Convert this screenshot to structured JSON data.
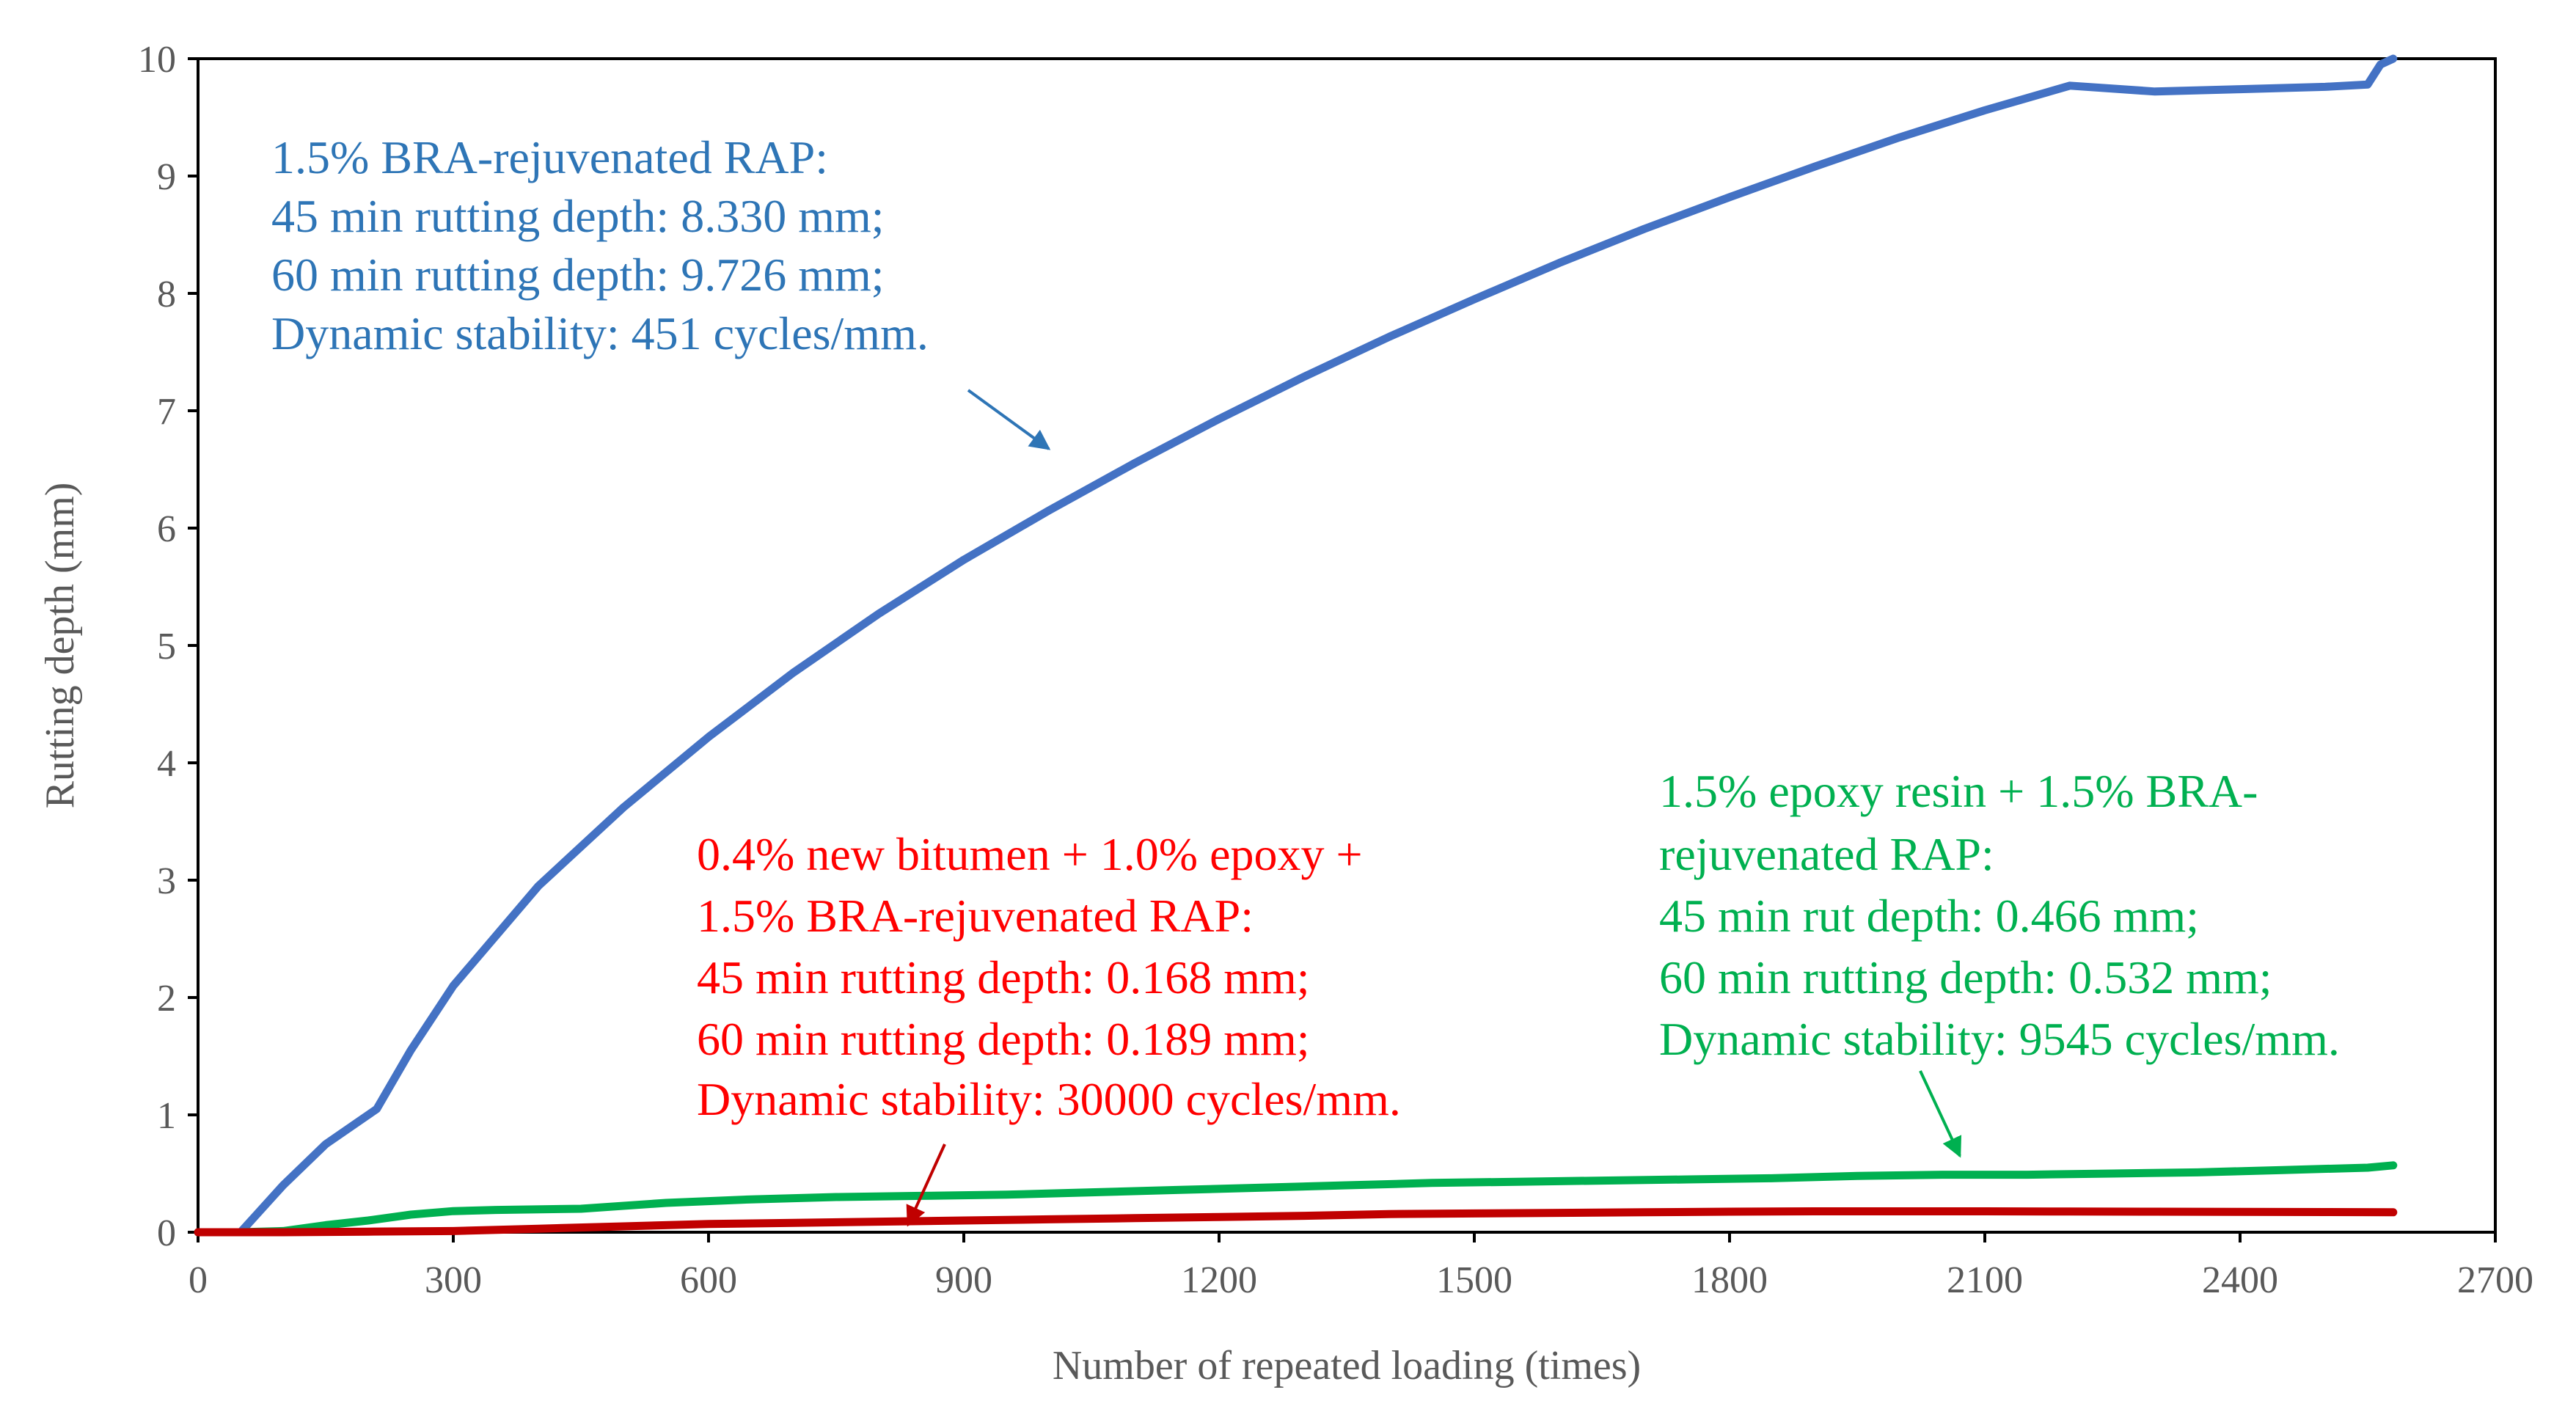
{
  "chart_data": {
    "type": "line",
    "title": "",
    "xlabel": "Number of repeated loading (times)",
    "ylabel": "Rutting depth (mm)",
    "xlim": [
      0,
      2700
    ],
    "ylim": [
      0,
      10
    ],
    "xticks": [
      0,
      300,
      600,
      900,
      1200,
      1500,
      1800,
      2100,
      2400,
      2700
    ],
    "yticks": [
      0,
      1,
      2,
      3,
      4,
      5,
      6,
      7,
      8,
      9,
      10
    ],
    "grid": false,
    "legend": "none",
    "series": [
      {
        "name": "1.5% BRA-rejuvenated RAP",
        "color": "#4472C4",
        "x": [
          0,
          50,
          100,
          150,
          200,
          210,
          250,
          300,
          400,
          500,
          600,
          700,
          800,
          900,
          1000,
          1100,
          1200,
          1300,
          1400,
          1500,
          1600,
          1700,
          1800,
          1900,
          2000,
          2100,
          2200,
          2300,
          2400,
          2500,
          2550,
          2565,
          2580
        ],
        "y": [
          0,
          0,
          0.4,
          0.75,
          1.0,
          1.05,
          1.55,
          2.1,
          2.95,
          3.62,
          4.22,
          4.77,
          5.27,
          5.73,
          6.15,
          6.55,
          6.93,
          7.29,
          7.63,
          7.95,
          8.26,
          8.55,
          8.82,
          9.08,
          9.33,
          9.56,
          9.77,
          9.72,
          9.74,
          9.76,
          9.78,
          9.95,
          10.0
        ]
      },
      {
        "name": "1.5% epoxy resin + 1.5% BRA-rejuvenated RAP",
        "color": "#00B050",
        "x": [
          0,
          50,
          100,
          150,
          200,
          250,
          300,
          350,
          450,
          550,
          650,
          750,
          850,
          950,
          1050,
          1150,
          1250,
          1350,
          1450,
          1550,
          1650,
          1750,
          1850,
          1950,
          2050,
          2150,
          2250,
          2350,
          2450,
          2550,
          2580
        ],
        "y": [
          0,
          0,
          0.01,
          0.06,
          0.1,
          0.15,
          0.18,
          0.19,
          0.2,
          0.25,
          0.28,
          0.3,
          0.31,
          0.32,
          0.34,
          0.36,
          0.38,
          0.4,
          0.42,
          0.43,
          0.44,
          0.45,
          0.46,
          0.48,
          0.49,
          0.49,
          0.5,
          0.51,
          0.53,
          0.55,
          0.57
        ]
      },
      {
        "name": "0.4% new bitumen + 1.0% epoxy + 1.5% BRA-rejuvenated RAP",
        "color": "#C00000",
        "x": [
          0,
          100,
          200,
          300,
          400,
          500,
          600,
          700,
          800,
          900,
          1000,
          1100,
          1200,
          1300,
          1400,
          1500,
          1600,
          1700,
          1800,
          1900,
          2000,
          2100,
          2200,
          2300,
          2400,
          2500,
          2580
        ],
        "y": [
          0,
          0,
          0.005,
          0.01,
          0.03,
          0.05,
          0.07,
          0.08,
          0.09,
          0.1,
          0.11,
          0.12,
          0.13,
          0.14,
          0.155,
          0.16,
          0.165,
          0.17,
          0.175,
          0.178,
          0.178,
          0.178,
          0.176,
          0.175,
          0.174,
          0.172,
          0.17
        ]
      }
    ],
    "annotations": [
      {
        "id": "blue",
        "color": "#2E75B6",
        "lines": [
          "1.5% BRA-rejuvenated RAP:",
          "45 min rutting depth: 8.330 mm;",
          "60 min rutting depth: 9.726 mm;",
          "Dynamic stability: 451 cycles/mm."
        ]
      },
      {
        "id": "red",
        "color": "#FF0000",
        "lines": [
          "0.4%  new  bitumen  +  1.0%  epoxy  +",
          "1.5% BRA-rejuvenated RAP:",
          "45 min rutting depth: 0.168 mm;",
          "60 min rutting depth: 0.189 mm;",
          "Dynamic stability: 30000 cycles/mm."
        ]
      },
      {
        "id": "green",
        "color": "#00B050",
        "lines": [
          "1.5%  epoxy  resin  +  1.5%  BRA-",
          "rejuvenated RAP:",
          "45 min rut depth: 0.466 mm;",
          "60 min rutting depth: 0.532 mm;",
          "Dynamic stability: 9545 cycles/mm."
        ]
      }
    ]
  }
}
